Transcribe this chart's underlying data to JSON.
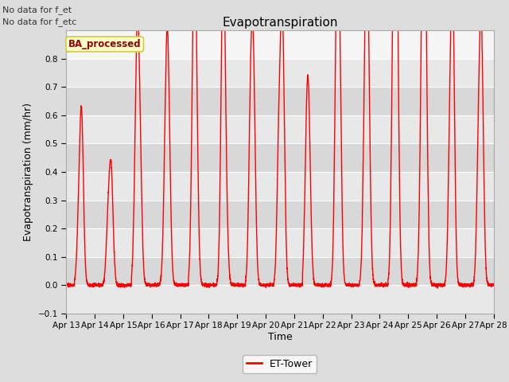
{
  "title": "Evapotranspiration",
  "xlabel": "Time",
  "ylabel": "Evapotranspiration (mm/hr)",
  "ylim": [
    -0.1,
    0.9
  ],
  "yticks": [
    -0.1,
    0.0,
    0.1,
    0.2,
    0.3,
    0.4,
    0.5,
    0.6,
    0.7,
    0.8
  ],
  "line_color": "red",
  "line_width": 1.0,
  "bg_color": "#dddddd",
  "plot_bg": "#f5f5f5",
  "annotations": [
    "No data for f_et",
    "No data for f_etc"
  ],
  "legend_label": "ET-Tower",
  "ba_label": "BA_processed",
  "ba_color": "#990000",
  "ba_bg": "#ffffcc",
  "ba_edge": "#cccc44",
  "x_tick_labels": [
    "Apr 13",
    "Apr 14",
    "Apr 15",
    "Apr 16",
    "Apr 17",
    "Apr 18",
    "Apr 19",
    "Apr 20",
    "Apr 21",
    "Apr 22",
    "Apr 23",
    "Apr 24",
    "Apr 25",
    "Apr 26",
    "Apr 27",
    "Apr 28"
  ],
  "band_colors": [
    "#e8e8e8",
    "#d8d8d8"
  ],
  "grid_color": "#ffffff"
}
